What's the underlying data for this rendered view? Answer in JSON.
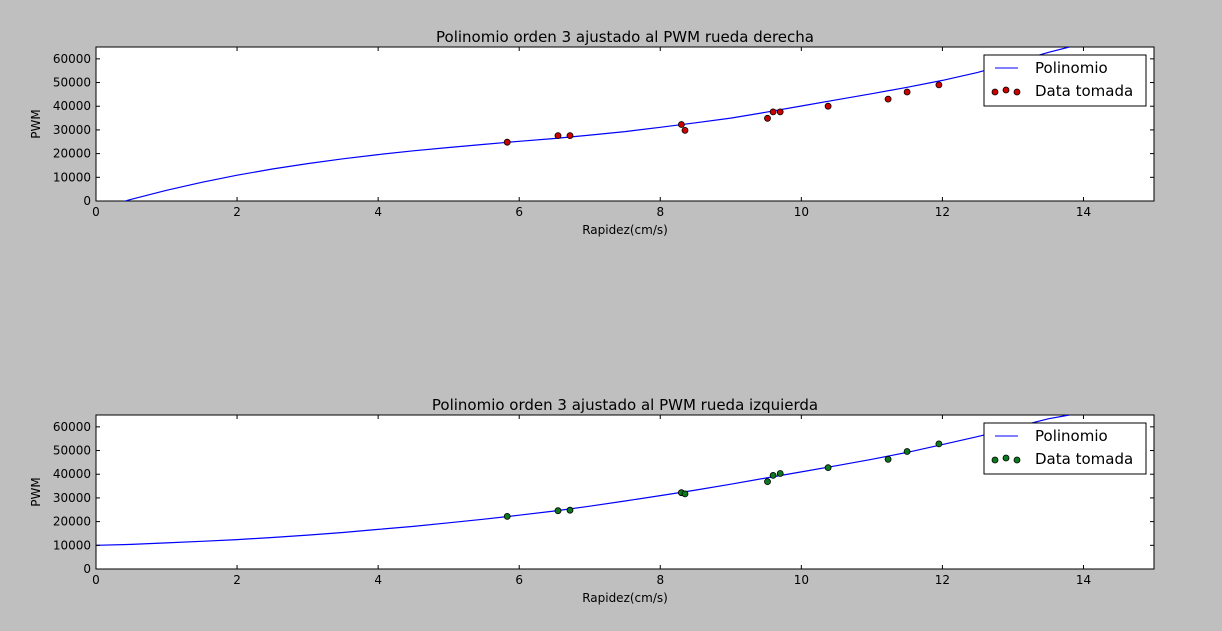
{
  "figure": {
    "background": "#bfbfbf"
  },
  "chart_data": [
    {
      "type": "scatter",
      "title": "Polinomio orden 3 ajustado al PWM rueda derecha",
      "xlabel": "Rapidez(cm/s)",
      "ylabel": "PWM",
      "xlim": [
        0,
        15
      ],
      "ylim": [
        0,
        65000
      ],
      "xticks": [
        0,
        2,
        4,
        6,
        8,
        10,
        12,
        14
      ],
      "yticks": [
        0,
        10000,
        20000,
        30000,
        40000,
        50000,
        60000
      ],
      "legend": "top-right",
      "grid": false,
      "series": [
        {
          "name": "Polinomio",
          "kind": "line",
          "color": "#0000ff",
          "x": [
            0.3,
            0.5,
            1,
            1.5,
            2,
            2.5,
            3,
            3.5,
            4,
            4.5,
            5,
            5.5,
            6,
            6.5,
            7,
            7.5,
            8,
            8.5,
            9,
            9.5,
            10,
            10.5,
            11,
            11.5,
            12,
            12.5,
            13,
            13.5,
            13.8
          ],
          "y": [
            -1000,
            700,
            4500,
            7900,
            10900,
            13500,
            15800,
            17800,
            19600,
            21200,
            22600,
            23900,
            25200,
            26400,
            27800,
            29300,
            31100,
            33000,
            35000,
            37500,
            40100,
            42700,
            45300,
            48000,
            50900,
            54300,
            58400,
            62700,
            65000
          ]
        },
        {
          "name": "Data tomada",
          "kind": "scatter",
          "color": "#cc0000",
          "x": [
            5.83,
            6.55,
            6.72,
            8.3,
            8.35,
            9.52,
            9.6,
            9.7,
            10.38,
            11.23,
            11.5,
            11.95
          ],
          "y": [
            24800,
            27600,
            27600,
            32300,
            29800,
            34900,
            37600,
            37600,
            40000,
            43000,
            46000,
            49000
          ]
        }
      ]
    },
    {
      "type": "scatter",
      "title": "Polinomio orden 3 ajustado al PWM rueda izquierda",
      "xlabel": "Rapidez(cm/s)",
      "ylabel": "PWM",
      "xlim": [
        0,
        15
      ],
      "ylim": [
        0,
        65000
      ],
      "xticks": [
        0,
        2,
        4,
        6,
        8,
        10,
        12,
        14
      ],
      "yticks": [
        0,
        10000,
        20000,
        30000,
        40000,
        50000,
        60000
      ],
      "legend": "top-right",
      "grid": false,
      "series": [
        {
          "name": "Polinomio",
          "kind": "line",
          "color": "#0000ff",
          "x": [
            0,
            0.5,
            1,
            1.5,
            2,
            2.5,
            3,
            3.5,
            4,
            4.5,
            5,
            5.5,
            6,
            6.5,
            7,
            7.5,
            8,
            8.5,
            9,
            9.5,
            10,
            10.5,
            11,
            11.5,
            12,
            12.5,
            13,
            13.5,
            13.8
          ],
          "y": [
            10000,
            10400,
            11000,
            11700,
            12400,
            13300,
            14300,
            15400,
            16700,
            18000,
            19500,
            21000,
            22700,
            24500,
            26500,
            28700,
            31000,
            33300,
            35800,
            38400,
            41000,
            43600,
            46300,
            49200,
            52500,
            55900,
            59600,
            63400,
            65000
          ]
        },
        {
          "name": "Data tomada",
          "kind": "scatter",
          "color": "#0b7a1e",
          "x": [
            5.83,
            6.55,
            6.72,
            8.3,
            8.35,
            9.52,
            9.6,
            9.7,
            10.38,
            11.23,
            11.5,
            11.95
          ],
          "y": [
            22200,
            24600,
            24800,
            32200,
            31700,
            36900,
            39500,
            40300,
            42800,
            46300,
            49600,
            52800
          ]
        }
      ]
    }
  ]
}
